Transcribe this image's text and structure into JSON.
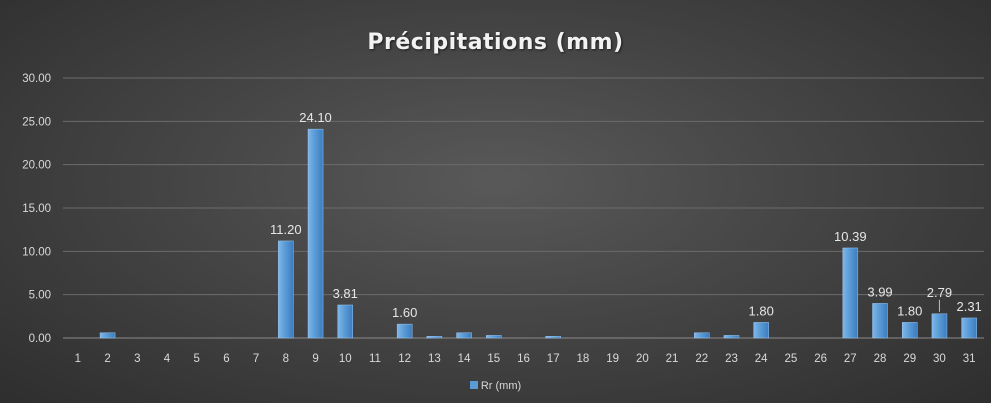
{
  "chart_data": {
    "type": "bar",
    "title": "Précipitations (mm)",
    "categories": [
      "1",
      "2",
      "3",
      "4",
      "5",
      "6",
      "7",
      "8",
      "9",
      "10",
      "11",
      "12",
      "13",
      "14",
      "15",
      "16",
      "17",
      "18",
      "19",
      "20",
      "21",
      "22",
      "23",
      "24",
      "25",
      "26",
      "27",
      "28",
      "29",
      "30",
      "31"
    ],
    "series": [
      {
        "name": "Rr (mm)",
        "values": [
          0,
          0.6,
          0,
          0,
          0,
          0,
          0,
          11.2,
          24.1,
          3.81,
          0,
          1.6,
          0.2,
          0.6,
          0.3,
          0,
          0.2,
          0,
          0,
          0,
          0,
          0.6,
          0.3,
          1.8,
          0,
          0,
          10.39,
          3.99,
          1.8,
          2.79,
          2.31
        ],
        "data_labels": [
          null,
          null,
          null,
          null,
          null,
          null,
          null,
          "11.20",
          "24.10",
          "3.81",
          null,
          "1.60",
          null,
          null,
          null,
          null,
          null,
          null,
          null,
          null,
          null,
          null,
          null,
          "1.80",
          null,
          null,
          "10.39",
          "3.99",
          "1.80",
          "2.79",
          "2.31"
        ]
      }
    ],
    "y_ticks": [
      "0.00",
      "5.00",
      "10.00",
      "15.00",
      "20.00",
      "25.00",
      "30.00"
    ],
    "ylim": [
      0,
      30
    ],
    "legend_position": "bottom",
    "grid": true,
    "colors": {
      "bar": "#5b9bd5",
      "bar_dark": "#3e7fc0",
      "grid": "#6b6b6b",
      "text": "#d9d9d9"
    }
  }
}
